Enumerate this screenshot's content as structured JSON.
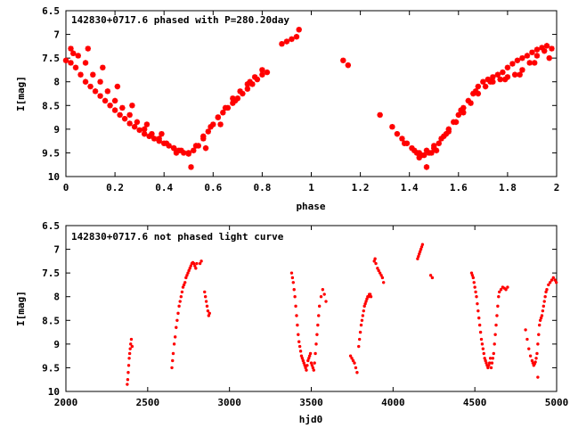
{
  "chart_data": [
    {
      "type": "scatter",
      "title": "142830+0717.6 phased with P=280.20day",
      "xlabel": "phase",
      "ylabel": "I[mag]",
      "xlim": [
        0,
        2
      ],
      "ylim": [
        6.5,
        10
      ],
      "y_inverted": true,
      "grid": false,
      "marker": "star",
      "color": "#ff0000",
      "xticks": [
        "0",
        "0.2",
        "0.4",
        "0.6",
        "0.8",
        "1",
        "1.2",
        "1.4",
        "1.6",
        "1.8",
        "2"
      ],
      "yticks": [
        "6.5",
        "7",
        "7.5",
        "8",
        "8.5",
        "9",
        "9.5",
        "10"
      ],
      "series": [
        {
          "x": [
            0.0,
            0.02,
            0.04,
            0.06,
            0.08,
            0.1,
            0.12,
            0.14,
            0.16,
            0.18,
            0.2,
            0.22,
            0.24,
            0.26,
            0.28,
            0.3,
            0.32,
            0.34,
            0.36,
            0.38,
            0.4,
            0.42,
            0.44,
            0.46,
            0.48,
            0.5,
            0.52,
            0.54,
            0.56,
            0.58,
            0.6,
            0.62,
            0.64,
            0.66,
            0.68,
            0.7,
            0.72,
            0.74,
            0.76,
            0.78,
            0.8,
            0.82,
            0.02,
            0.05,
            0.08,
            0.11,
            0.14,
            0.17,
            0.2,
            0.23,
            0.26,
            0.29,
            0.32,
            0.35,
            0.38,
            0.41,
            0.44,
            0.47,
            0.5,
            0.53,
            0.56,
            0.59,
            0.62,
            0.65,
            0.68,
            0.71,
            0.74,
            0.77,
            0.8,
            0.03,
            0.09,
            0.15,
            0.21,
            0.27,
            0.33,
            0.39,
            0.45,
            0.51,
            0.57,
            0.63,
            0.69,
            0.75,
            0.88,
            0.9,
            0.92,
            0.94,
            0.95,
            1.13,
            1.15,
            1.28,
            1.33,
            1.35,
            1.37,
            1.39,
            1.41,
            1.43,
            1.45,
            1.38,
            1.42,
            1.44,
            1.46,
            1.48,
            1.5,
            1.52,
            1.54,
            1.56,
            1.58,
            1.6,
            1.62,
            1.64,
            1.66,
            1.68,
            1.7,
            1.72,
            1.74,
            1.76,
            1.78,
            1.8,
            1.82,
            1.84,
            1.86,
            1.88,
            1.9,
            1.92,
            1.94,
            1.96,
            1.98,
            1.44,
            1.47,
            1.5,
            1.53,
            1.56,
            1.59,
            1.62,
            1.65,
            1.68,
            1.71,
            1.74,
            1.77,
            1.8,
            1.83,
            1.86,
            1.89,
            1.92,
            1.95,
            1.47,
            1.49,
            1.51,
            1.55,
            1.61,
            1.67,
            1.73,
            1.79,
            1.85,
            1.91,
            1.97
          ],
          "y": [
            7.55,
            7.6,
            7.7,
            7.85,
            8.0,
            8.1,
            8.2,
            8.3,
            8.4,
            8.5,
            8.6,
            8.7,
            8.78,
            8.88,
            8.95,
            9.02,
            9.1,
            9.15,
            9.2,
            9.25,
            9.3,
            9.35,
            9.4,
            9.45,
            9.5,
            9.52,
            9.45,
            9.35,
            9.2,
            9.05,
            8.9,
            8.75,
            8.65,
            8.55,
            8.45,
            8.35,
            8.25,
            8.15,
            8.05,
            7.95,
            7.85,
            7.8,
            7.3,
            7.45,
            7.6,
            7.85,
            8.0,
            8.2,
            8.4,
            8.55,
            8.7,
            8.85,
            9.0,
            9.1,
            9.2,
            9.3,
            9.4,
            9.45,
            9.5,
            9.35,
            9.15,
            8.95,
            8.75,
            8.55,
            8.35,
            8.2,
            8.05,
            7.9,
            7.75,
            7.4,
            7.3,
            7.7,
            8.1,
            8.5,
            8.9,
            9.1,
            9.5,
            9.8,
            9.4,
            8.9,
            8.4,
            8.0,
            7.2,
            7.15,
            7.1,
            7.05,
            6.9,
            7.55,
            7.65,
            8.7,
            8.95,
            9.1,
            9.2,
            9.3,
            9.4,
            9.5,
            9.55,
            9.3,
            9.45,
            9.5,
            9.55,
            9.5,
            9.4,
            9.3,
            9.15,
            9.0,
            8.85,
            8.7,
            8.55,
            8.4,
            8.25,
            8.1,
            8.0,
            7.95,
            7.9,
            7.85,
            7.8,
            7.7,
            7.62,
            7.55,
            7.5,
            7.45,
            7.38,
            7.32,
            7.28,
            7.24,
            7.3,
            9.6,
            9.45,
            9.35,
            9.2,
            9.05,
            8.85,
            8.65,
            8.45,
            8.25,
            8.1,
            8.0,
            7.95,
            7.9,
            7.85,
            7.75,
            7.6,
            7.45,
            7.35,
            9.8,
            9.5,
            9.45,
            9.1,
            8.6,
            8.2,
            8.0,
            7.95,
            7.85,
            7.6,
            7.5
          ]
        }
      ]
    },
    {
      "type": "scatter",
      "title": "142830+0717.6 not phased light curve",
      "xlabel": "hjd0",
      "ylabel": "I[mag]",
      "xlim": [
        2000,
        5000
      ],
      "ylim": [
        6.5,
        10
      ],
      "y_inverted": true,
      "grid": false,
      "marker": "dot",
      "color": "#ff0000",
      "xticks": [
        "2000",
        "2500",
        "3000",
        "3500",
        "4000",
        "4500",
        "5000"
      ],
      "yticks": [
        "6.5",
        "7",
        "7.5",
        "8",
        "8.5",
        "9",
        "9.5",
        "10"
      ],
      "series": [
        {
          "x": [
            2375,
            2378,
            2381,
            2384,
            2387,
            2390,
            2393,
            2396,
            2400,
            2405,
            2648,
            2652,
            2656,
            2662,
            2668,
            2674,
            2680,
            2686,
            2692,
            2698,
            2704,
            2710,
            2716,
            2722,
            2728,
            2734,
            2740,
            2746,
            2752,
            2758,
            2764,
            2770,
            2776,
            2782,
            2788,
            2794,
            2800,
            2820,
            2828,
            2848,
            2853,
            2858,
            2863,
            2868,
            2873,
            2878,
            3380,
            3385,
            3390,
            3395,
            3400,
            3405,
            3410,
            3415,
            3420,
            3425,
            3430,
            3435,
            3440,
            3445,
            3450,
            3455,
            3460,
            3465,
            3470,
            3475,
            3480,
            3485,
            3490,
            3495,
            3500,
            3505,
            3510,
            3515,
            3520,
            3525,
            3530,
            3535,
            3540,
            3545,
            3550,
            3560,
            3570,
            3580,
            3590,
            3740,
            3748,
            3756,
            3764,
            3772,
            3780,
            3790,
            3795,
            3800,
            3805,
            3810,
            3815,
            3820,
            3825,
            3830,
            3835,
            3840,
            3845,
            3850,
            3855,
            3860,
            3865,
            3885,
            3890,
            3895,
            3905,
            3912,
            3920,
            3928,
            3935,
            3942,
            4150,
            4155,
            4160,
            4165,
            4170,
            4175,
            4180,
            4230,
            4240,
            4480,
            4485,
            4490,
            4495,
            4500,
            4505,
            4510,
            4515,
            4520,
            4525,
            4530,
            4535,
            4540,
            4545,
            4550,
            4555,
            4560,
            4565,
            4570,
            4575,
            4580,
            4585,
            4590,
            4595,
            4600,
            4605,
            4610,
            4615,
            4620,
            4625,
            4630,
            4635,
            4640,
            4645,
            4650,
            4660,
            4670,
            4680,
            4690,
            4700,
            4810,
            4820,
            4830,
            4840,
            4850,
            4855,
            4860,
            4865,
            4870,
            4875,
            4880,
            4885,
            4890,
            4895,
            4900,
            4905,
            4910,
            4915,
            4920,
            4925,
            4930,
            4935,
            4940,
            4950,
            4960,
            4970,
            4980,
            4990,
            4998,
            4885
          ],
          "y": [
            9.85,
            9.75,
            9.6,
            9.45,
            9.3,
            9.2,
            9.1,
            9.0,
            8.9,
            9.05,
            9.5,
            9.35,
            9.2,
            9.0,
            8.85,
            8.65,
            8.5,
            8.35,
            8.2,
            8.1,
            8.0,
            7.9,
            7.8,
            7.75,
            7.7,
            7.6,
            7.55,
            7.5,
            7.45,
            7.4,
            7.35,
            7.3,
            7.28,
            7.3,
            7.35,
            7.4,
            7.3,
            7.3,
            7.25,
            7.9,
            8.0,
            8.1,
            8.2,
            8.3,
            8.4,
            8.35,
            7.5,
            7.6,
            7.7,
            7.85,
            8.0,
            8.2,
            8.4,
            8.6,
            8.8,
            8.95,
            9.05,
            9.15,
            9.25,
            9.3,
            9.35,
            9.4,
            9.45,
            9.5,
            9.55,
            9.45,
            9.35,
            9.3,
            9.25,
            9.2,
            9.4,
            9.45,
            9.5,
            9.55,
            9.4,
            9.2,
            9.0,
            8.8,
            8.6,
            8.4,
            8.2,
            8.0,
            7.85,
            7.95,
            8.1,
            9.25,
            9.3,
            9.35,
            9.4,
            9.5,
            9.6,
            9.05,
            8.9,
            8.75,
            8.6,
            8.5,
            8.4,
            8.3,
            8.2,
            8.15,
            8.1,
            8.05,
            8.0,
            8.0,
            7.95,
            7.95,
            8.0,
            7.25,
            7.2,
            7.3,
            7.4,
            7.45,
            7.5,
            7.55,
            7.6,
            7.7,
            7.2,
            7.15,
            7.1,
            7.05,
            7.0,
            6.95,
            6.9,
            7.55,
            7.6,
            7.5,
            7.55,
            7.6,
            7.7,
            7.8,
            7.9,
            8.0,
            8.15,
            8.3,
            8.45,
            8.6,
            8.75,
            8.9,
            9.0,
            9.1,
            9.2,
            9.3,
            9.35,
            9.4,
            9.45,
            9.5,
            9.45,
            9.4,
            9.3,
            9.5,
            9.4,
            9.3,
            9.2,
            9.0,
            8.8,
            8.6,
            8.4,
            8.2,
            8.0,
            7.9,
            7.85,
            7.8,
            7.82,
            7.85,
            7.8,
            8.7,
            8.9,
            9.1,
            9.25,
            9.35,
            9.4,
            9.45,
            9.42,
            9.38,
            9.3,
            9.2,
            9.0,
            8.8,
            8.6,
            8.5,
            8.45,
            8.4,
            8.3,
            8.2,
            8.1,
            8.0,
            7.9,
            7.85,
            7.75,
            7.7,
            7.65,
            7.6,
            7.65,
            7.7,
            9.7
          ]
        }
      ]
    }
  ]
}
